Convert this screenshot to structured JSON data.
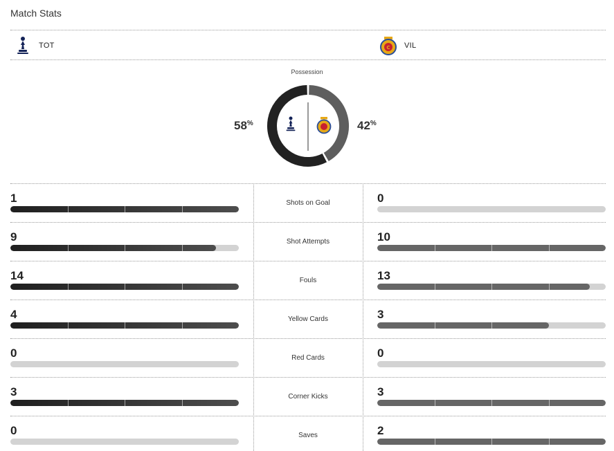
{
  "header": {
    "title": "Match Stats"
  },
  "teams": {
    "home": {
      "abbr": "TOT",
      "logo_icon": "tottenham-crest-icon"
    },
    "away": {
      "abbr": "VIL",
      "logo_icon": "villarreal-crest-icon"
    }
  },
  "possession": {
    "label": "Possession",
    "home_pct": "58",
    "away_pct": "42",
    "pct_symbol": "%",
    "home_value": 58,
    "away_value": 42
  },
  "colors": {
    "home_fill_start": "#1f1f1f",
    "home_fill_end": "#4d4d4d",
    "away_fill": "#666666",
    "empty": "#d3d3d3",
    "home_ring": "#222222",
    "away_ring": "#5e5e5e"
  },
  "stats": [
    {
      "label": "Shots on Goal",
      "home": "1",
      "away": "0",
      "home_frac": 1.0,
      "away_frac": 0.0
    },
    {
      "label": "Shot Attempts",
      "home": "9",
      "away": "10",
      "home_frac": 0.9,
      "away_frac": 1.0
    },
    {
      "label": "Fouls",
      "home": "14",
      "away": "13",
      "home_frac": 1.0,
      "away_frac": 0.93
    },
    {
      "label": "Yellow Cards",
      "home": "4",
      "away": "3",
      "home_frac": 1.0,
      "away_frac": 0.75
    },
    {
      "label": "Red Cards",
      "home": "0",
      "away": "0",
      "home_frac": 0.0,
      "away_frac": 0.0
    },
    {
      "label": "Corner Kicks",
      "home": "3",
      "away": "3",
      "home_frac": 1.0,
      "away_frac": 1.0
    },
    {
      "label": "Saves",
      "home": "0",
      "away": "2",
      "home_frac": 0.0,
      "away_frac": 1.0
    }
  ]
}
